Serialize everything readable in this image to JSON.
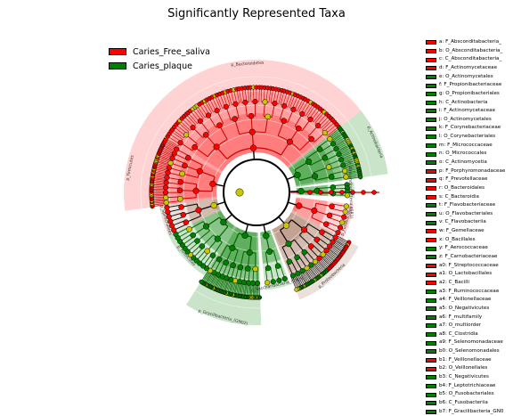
{
  "title": "Significantly Represented Taxa",
  "groups": [
    {
      "name": "Caries_Free_saliva",
      "color": "#ff0000"
    },
    {
      "name": "Caries_plaque",
      "color": "#008000"
    }
  ],
  "colors": {
    "free_node": "#ff0000",
    "plaque_node": "#008000",
    "nonsig_node": "#c8c800",
    "free_sector": "#ff6060",
    "plaque_sector": "#3c9e3c",
    "mixed_sector": "#b78e7a"
  },
  "sectors": [
    {
      "group": "free",
      "label": "p_Bacteroidetes"
    },
    {
      "group": "plaque",
      "label": "p_Actinobacteria"
    },
    {
      "group": "plaque",
      "label": "p_Absconditabacteria_(SR1)"
    },
    {
      "group": "free",
      "label": "p_Fusobacteria"
    },
    {
      "group": "mixed",
      "label": "p_Proteobacteria"
    },
    {
      "group": "plaque",
      "label": "p_Saccharibacteria_(TM7)"
    },
    {
      "group": "plaque",
      "label": "p_Gracilibacteria_(GN02)"
    },
    {
      "group": "plaque",
      "label": "p_Firmicutes"
    },
    {
      "group": "mixed",
      "label": "p_Spirochaetes"
    },
    {
      "group": "free",
      "label": "p_Firmicutes"
    }
  ],
  "taxa": [
    {
      "label": "a: F_Absconditabacteria_",
      "group": "free"
    },
    {
      "label": "b: O_Absconditabacteria_",
      "group": "free"
    },
    {
      "label": "c: C_Absconditabacteria_",
      "group": "free"
    },
    {
      "label": "d: F_Actinomycetaceae",
      "group": "free"
    },
    {
      "label": "e: O_Actinomycetales",
      "group": "plaque"
    },
    {
      "label": "f: F_Propionibacteriaceae",
      "group": "plaque"
    },
    {
      "label": "g: O_Propionibacteriales",
      "group": "plaque"
    },
    {
      "label": "h: C_Actinobacteria",
      "group": "plaque"
    },
    {
      "label": "i: F_Actinomycetaceae",
      "group": "plaque"
    },
    {
      "label": "j: O_Actinomycetales",
      "group": "plaque"
    },
    {
      "label": "k: F_Corynebacteriaceae",
      "group": "plaque"
    },
    {
      "label": "l: O_Corynebacteriales",
      "group": "plaque"
    },
    {
      "label": "m: F_Micrococcaceae",
      "group": "plaque"
    },
    {
      "label": "n: O_Micrococcales",
      "group": "plaque"
    },
    {
      "label": "o: C_Actinomycetia",
      "group": "plaque"
    },
    {
      "label": "p: F_Porphyromonadaceae",
      "group": "free"
    },
    {
      "label": "q: F_Prevotellaceae",
      "group": "free"
    },
    {
      "label": "r: O_Bacteroidales",
      "group": "free"
    },
    {
      "label": "s: C_Bacteroidia",
      "group": "free"
    },
    {
      "label": "t: F_Flavobacteriaceae",
      "group": "plaque"
    },
    {
      "label": "u: O_Flavobacteriales",
      "group": "plaque"
    },
    {
      "label": "v: C_Flavobacteriia",
      "group": "plaque"
    },
    {
      "label": "w: F_Gemellaceae",
      "group": "free"
    },
    {
      "label": "x: O_Bacillales",
      "group": "free"
    },
    {
      "label": "y: F_Aerococcaceae",
      "group": "plaque"
    },
    {
      "label": "z: F_Carnobacteriaceae",
      "group": "plaque"
    },
    {
      "label": "a0: F_Streptococcaceae",
      "group": "free"
    },
    {
      "label": "a1: O_Lactobacillales",
      "group": "free"
    },
    {
      "label": "a2: C_Bacilli",
      "group": "free"
    },
    {
      "label": "a3: F_Ruminococcaceae",
      "group": "plaque"
    },
    {
      "label": "a4: F_Veillonellaceae",
      "group": "plaque"
    },
    {
      "label": "a5: O_Negativicutes",
      "group": "plaque"
    },
    {
      "label": "a6: F_multifamily",
      "group": "plaque"
    },
    {
      "label": "a7: O_multiorder",
      "group": "plaque"
    },
    {
      "label": "a8: C_Clostridia",
      "group": "plaque"
    },
    {
      "label": "a9: F_Selenomonadaceae",
      "group": "plaque"
    },
    {
      "label": "b0: O_Selenomonadales",
      "group": "plaque"
    },
    {
      "label": "b1: F_Veillonellaceae",
      "group": "free"
    },
    {
      "label": "b2: O_Veillonellales",
      "group": "free"
    },
    {
      "label": "b3: C_Negativicutes",
      "group": "plaque"
    },
    {
      "label": "b4: F_Leptotrichiaceae",
      "group": "plaque"
    },
    {
      "label": "b5: O_Fusobacteriales",
      "group": "plaque"
    },
    {
      "label": "b6: C_Fusobacteriia",
      "group": "plaque"
    },
    {
      "label": "b7: F_Gracilibacteria_GN0",
      "group": "plaque"
    }
  ]
}
